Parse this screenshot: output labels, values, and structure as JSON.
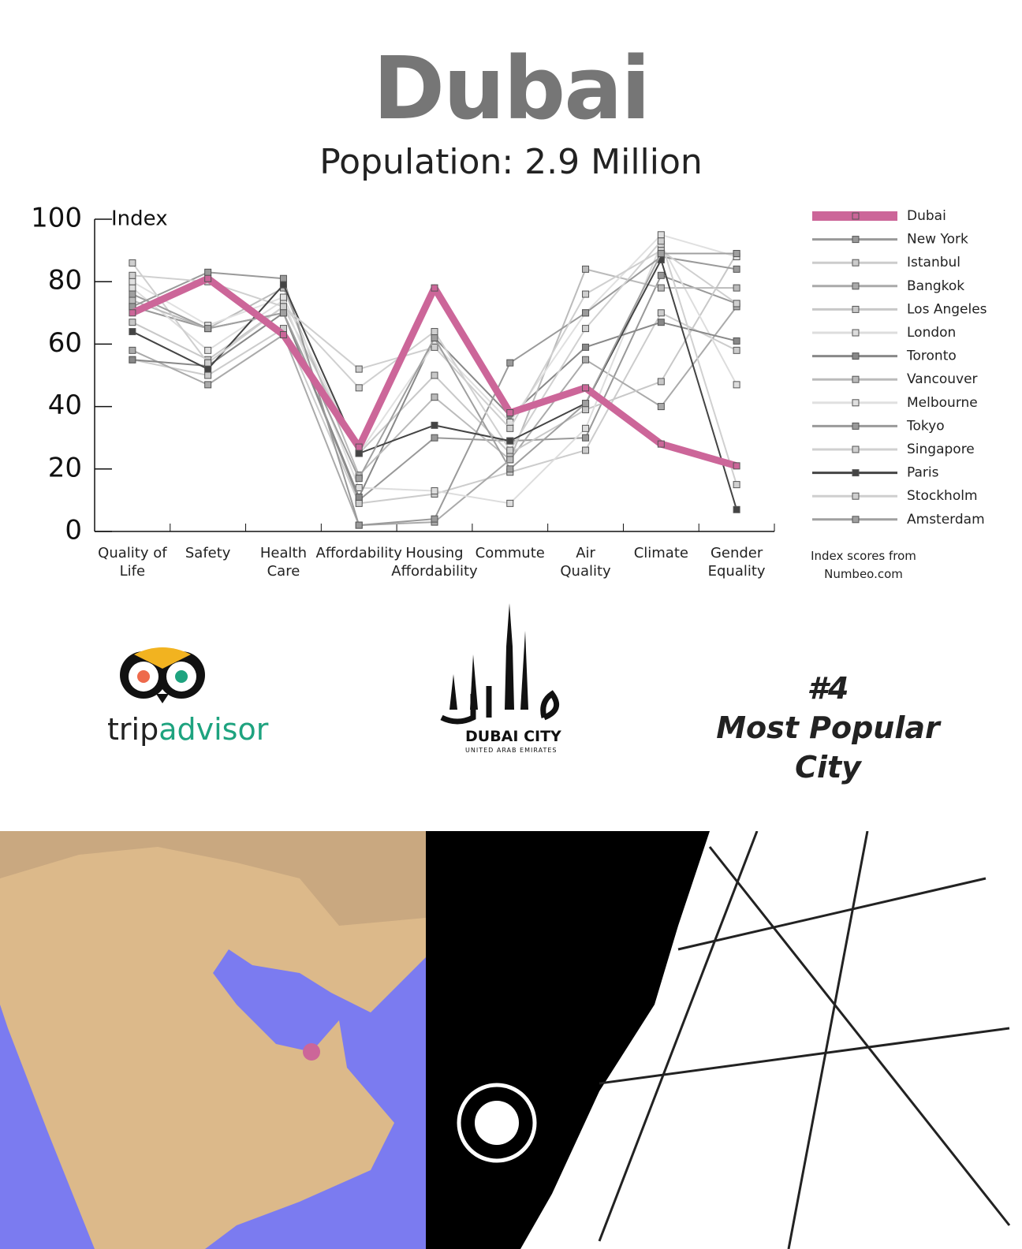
{
  "chart_data": {
    "type": "line",
    "title": "Dubai",
    "subtitle": "Population: 2.9 Million",
    "y_label": "Index",
    "note": "Index scores from Numbeo.com",
    "categories": [
      "Quality of Life",
      "Safety",
      "Health Care",
      "Affordability",
      "Housing Affordability",
      "Commute",
      "Air Quality",
      "Climate",
      "Gender Equality"
    ],
    "ylim": [
      0,
      100
    ],
    "yticks": [
      0,
      20,
      40,
      60,
      80,
      100
    ],
    "series": [
      {
        "name": "Dubai",
        "color": "#cc6699",
        "values": [
          70,
          81,
          63,
          27,
          78,
          38,
          46,
          28,
          21
        ]
      },
      {
        "name": "New York",
        "color": "#999999",
        "values": [
          72,
          65,
          70,
          10,
          30,
          29,
          30,
          82,
          73
        ]
      },
      {
        "name": "Istanbul",
        "color": "#cccccc",
        "values": [
          55,
          50,
          65,
          9,
          12,
          19,
          26,
          70,
          58
        ]
      },
      {
        "name": "Bangkok",
        "color": "#aaaaaa",
        "values": [
          58,
          47,
          63,
          2,
          3,
          23,
          55,
          40,
          72
        ]
      },
      {
        "name": "Los Angeles",
        "color": "#c8c8c8",
        "values": [
          67,
          55,
          72,
          25,
          50,
          25,
          39,
          48,
          89
        ]
      },
      {
        "name": "London",
        "color": "#dddddd",
        "values": [
          78,
          58,
          74,
          14,
          13,
          9,
          33,
          92,
          47
        ]
      },
      {
        "name": "Toronto",
        "color": "#888888",
        "values": [
          55,
          53,
          70,
          11,
          62,
          37,
          59,
          67,
          61
        ]
      },
      {
        "name": "Vancouver",
        "color": "#bbbbbb",
        "values": [
          74,
          65,
          78,
          18,
          43,
          23,
          84,
          78,
          78
        ]
      },
      {
        "name": "Melbourne",
        "color": "#e0e0e0",
        "values": [
          80,
          66,
          75,
          25,
          60,
          35,
          70,
          95,
          88
        ]
      },
      {
        "name": "Tokyo",
        "color": "#9a9a9a",
        "values": [
          72,
          83,
          81,
          2,
          4,
          54,
          70,
          88,
          84
        ]
      },
      {
        "name": "Singapore",
        "color": "#d0d0d0",
        "values": [
          82,
          80,
          72,
          46,
          64,
          26,
          65,
          93,
          15
        ]
      },
      {
        "name": "Paris",
        "color": "#444444",
        "values": [
          64,
          52,
          79,
          25,
          34,
          29,
          41,
          87,
          7
        ]
      },
      {
        "name": "Stockholm",
        "color": "#cfcfcf",
        "values": [
          86,
          54,
          72,
          52,
          59,
          33,
          76,
          90,
          73
        ]
      },
      {
        "name": "Amsterdam",
        "color": "#a0a0a0",
        "values": [
          76,
          65,
          70,
          17,
          62,
          20,
          41,
          89,
          89
        ]
      }
    ]
  },
  "logos": {
    "tripadvisor": {
      "part1": "trip",
      "part2": "advisor"
    },
    "dubai_city": {
      "name": "DUBAI CITY",
      "country": "UNITED ARAB EMIRATES"
    }
  },
  "ranking": {
    "rank": "#4",
    "label": "Most Popular City"
  }
}
